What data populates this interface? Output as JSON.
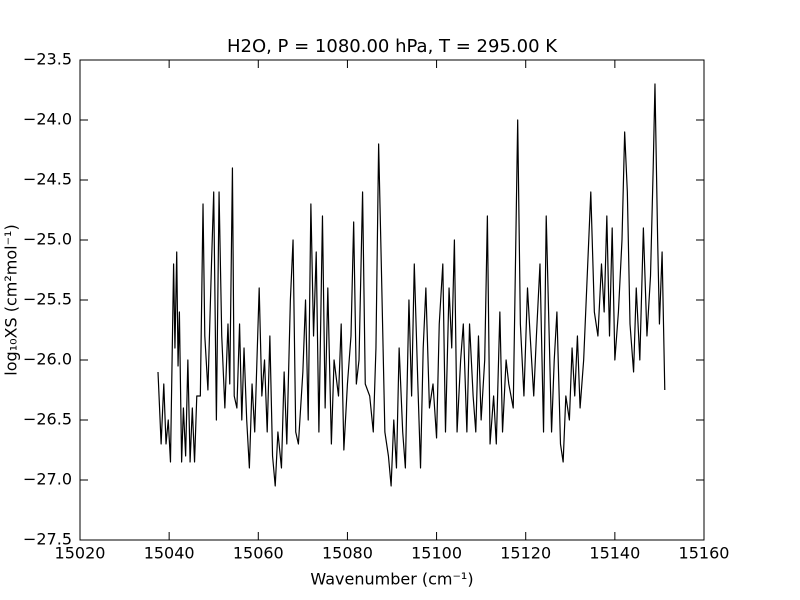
{
  "chart_data": {
    "type": "line",
    "title": "H2O, P = 1080.00 hPa, T = 295.00 K",
    "x_label": "Wavenumber (cm⁻¹)",
    "y_label": "log₁₀XS (cm²mol⁻¹)",
    "color": "#000000",
    "xlim": [
      15020,
      15160
    ],
    "ylim": [
      -27.5,
      -23.5
    ],
    "xticks": [
      15020,
      15040,
      15060,
      15080,
      15100,
      15120,
      15140,
      15160
    ],
    "yticks": [
      {
        "value": -23.5,
        "label": "−23.5"
      },
      {
        "value": -24.0,
        "label": "−24.0"
      },
      {
        "value": -24.5,
        "label": "−24.5"
      },
      {
        "value": -25.0,
        "label": "−25.0"
      },
      {
        "value": -25.5,
        "label": "−25.5"
      },
      {
        "value": -26.0,
        "label": "−26.0"
      },
      {
        "value": -26.5,
        "label": "−26.5"
      },
      {
        "value": -27.0,
        "label": "−27.0"
      },
      {
        "value": -27.5,
        "label": "−27.5"
      }
    ],
    "x": [
      15037.5,
      15038.2,
      15038.8,
      15039.3,
      15039.8,
      15040.3,
      15041.0,
      15041.3,
      15041.7,
      15042.0,
      15042.3,
      15042.8,
      15043.2,
      15043.7,
      15044.2,
      15044.7,
      15045.2,
      15045.7,
      15046.2,
      15047.0,
      15047.6,
      15048.0,
      15048.7,
      15049.5,
      15050.0,
      15050.6,
      15051.2,
      15051.8,
      15052.5,
      15053.2,
      15053.6,
      15054.2,
      15054.6,
      15055.2,
      15055.8,
      15056.3,
      15056.8,
      15057.4,
      15058.0,
      15058.6,
      15059.2,
      15060.2,
      15060.8,
      15061.4,
      15062.0,
      15062.6,
      15063.2,
      15063.8,
      15064.4,
      15065.2,
      15065.8,
      15066.4,
      15067.2,
      15067.8,
      15068.4,
      15069.0,
      15070.0,
      15070.6,
      15071.2,
      15071.8,
      15072.4,
      15073.0,
      15073.6,
      15074.4,
      15075.0,
      15075.6,
      15076.4,
      15077.0,
      15078.0,
      15078.6,
      15079.2,
      15080.0,
      15080.8,
      15081.4,
      15082.0,
      15082.6,
      15083.4,
      15084.0,
      15085.0,
      15085.8,
      15086.4,
      15087.0,
      15087.6,
      15088.4,
      15089.2,
      15089.8,
      15090.4,
      15091.0,
      15091.6,
      15092.4,
      15093.0,
      15093.8,
      15094.4,
      15095.0,
      15095.8,
      15096.4,
      15097.0,
      15097.6,
      15098.4,
      15099.2,
      15100.0,
      15100.6,
      15101.4,
      15102.0,
      15102.8,
      15103.4,
      15104.0,
      15104.6,
      15105.4,
      15106.0,
      15106.8,
      15107.4,
      15108.2,
      15108.8,
      15109.4,
      15110.0,
      15110.8,
      15111.4,
      15112.0,
      15112.8,
      15113.4,
      15114.2,
      15114.8,
      15115.6,
      15116.2,
      15117.2,
      15118.2,
      15118.8,
      15119.6,
      15120.4,
      15121.0,
      15121.8,
      15122.4,
      15123.2,
      15124.0,
      15124.6,
      15125.2,
      15125.8,
      15126.4,
      15127.0,
      15127.8,
      15128.4,
      15129.0,
      15129.8,
      15130.4,
      15131.0,
      15131.6,
      15132.2,
      15133.0,
      15134.6,
      15135.4,
      15136.2,
      15137.0,
      15137.6,
      15138.2,
      15138.8,
      15139.4,
      15140.0,
      15140.8,
      15141.6,
      15142.2,
      15142.8,
      15143.4,
      15144.2,
      15144.8,
      15145.6,
      15146.4,
      15147.2,
      15148.0,
      15148.6,
      15149.0,
      15149.6,
      15150.0,
      15150.6,
      15151.2
    ],
    "values": [
      -26.1,
      -26.7,
      -26.2,
      -26.7,
      -26.5,
      -26.85,
      -25.2,
      -25.9,
      -25.1,
      -26.05,
      -25.6,
      -26.85,
      -26.4,
      -26.8,
      -26.0,
      -26.85,
      -26.4,
      -26.85,
      -26.3,
      -26.3,
      -24.7,
      -25.8,
      -26.25,
      -25.2,
      -24.6,
      -26.5,
      -24.6,
      -25.8,
      -26.4,
      -25.7,
      -26.2,
      -24.4,
      -26.3,
      -26.4,
      -25.7,
      -26.5,
      -25.9,
      -26.5,
      -26.9,
      -26.2,
      -26.6,
      -25.4,
      -26.3,
      -26.0,
      -26.6,
      -25.8,
      -26.8,
      -27.05,
      -26.6,
      -26.9,
      -26.1,
      -26.7,
      -25.5,
      -25.0,
      -26.6,
      -26.7,
      -26.1,
      -25.5,
      -26.5,
      -24.7,
      -25.8,
      -25.1,
      -26.6,
      -24.8,
      -26.4,
      -25.4,
      -26.7,
      -26.0,
      -26.3,
      -25.7,
      -26.75,
      -26.2,
      -25.8,
      -24.85,
      -26.2,
      -26.0,
      -24.6,
      -26.2,
      -26.3,
      -26.6,
      -25.9,
      -24.2,
      -25.2,
      -26.6,
      -26.8,
      -27.05,
      -26.5,
      -26.9,
      -25.9,
      -26.6,
      -26.9,
      -25.5,
      -26.3,
      -25.2,
      -26.2,
      -26.9,
      -25.9,
      -25.4,
      -26.4,
      -26.2,
      -26.65,
      -25.7,
      -25.2,
      -26.6,
      -25.4,
      -25.9,
      -25.0,
      -26.6,
      -26.0,
      -25.7,
      -26.6,
      -25.7,
      -26.3,
      -26.6,
      -25.8,
      -26.5,
      -26.0,
      -24.8,
      -26.7,
      -26.3,
      -26.7,
      -25.6,
      -26.6,
      -26.0,
      -26.2,
      -26.4,
      -24.0,
      -25.7,
      -26.3,
      -25.4,
      -25.8,
      -26.3,
      -25.8,
      -25.2,
      -26.6,
      -24.8,
      -25.7,
      -26.6,
      -26.0,
      -25.6,
      -26.7,
      -26.85,
      -26.3,
      -26.5,
      -25.9,
      -26.3,
      -25.8,
      -26.4,
      -26.0,
      -24.6,
      -25.6,
      -25.8,
      -25.2,
      -25.6,
      -24.8,
      -25.8,
      -24.9,
      -26.0,
      -25.6,
      -25.0,
      -24.1,
      -24.6,
      -25.7,
      -26.1,
      -25.4,
      -26.0,
      -24.9,
      -25.8,
      -25.3,
      -24.4,
      -23.7,
      -25.0,
      -25.7,
      -25.1,
      -26.25
    ]
  }
}
